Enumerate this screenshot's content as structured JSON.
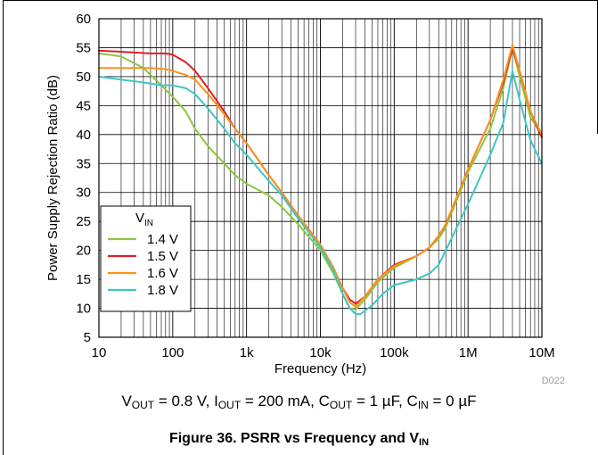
{
  "chart_data": {
    "type": "line",
    "xscale": "log",
    "xlim": [
      10,
      10000000
    ],
    "ylim": [
      5,
      60
    ],
    "xlabel": "Frequency (Hz)",
    "ylabel": "Power Supply Rejection Ratio (dB)",
    "x_ticks": [
      {
        "value": 10,
        "label": "10"
      },
      {
        "value": 100,
        "label": "100"
      },
      {
        "value": 1000,
        "label": "1k"
      },
      {
        "value": 10000,
        "label": "10k"
      },
      {
        "value": 100000,
        "label": "100k"
      },
      {
        "value": 1000000,
        "label": "1M"
      },
      {
        "value": 10000000,
        "label": "10M"
      }
    ],
    "y_ticks": [
      5,
      10,
      15,
      20,
      25,
      30,
      35,
      40,
      45,
      50,
      55,
      60
    ],
    "grid": true,
    "legend": {
      "title": "V",
      "title_sub": "IN",
      "position": "lower-left"
    },
    "series": [
      {
        "name": "1.4 V",
        "color": "#8dc63f",
        "points": [
          [
            10,
            54
          ],
          [
            20,
            53.5
          ],
          [
            40,
            51.5
          ],
          [
            70,
            48.5
          ],
          [
            100,
            46.5
          ],
          [
            150,
            44
          ],
          [
            200,
            41
          ],
          [
            300,
            38
          ],
          [
            500,
            35
          ],
          [
            700,
            33
          ],
          [
            1000,
            31.5
          ],
          [
            2000,
            29.5
          ],
          [
            3000,
            27.5
          ],
          [
            5000,
            24.5
          ],
          [
            10000,
            20
          ],
          [
            15000,
            16
          ],
          [
            20000,
            12.5
          ],
          [
            25000,
            10
          ],
          [
            30000,
            9.8
          ],
          [
            40000,
            11.5
          ],
          [
            60000,
            14.5
          ],
          [
            100000,
            17
          ],
          [
            200000,
            19
          ],
          [
            300000,
            20.5
          ],
          [
            400000,
            22
          ],
          [
            500000,
            24
          ],
          [
            1000000,
            33.5
          ],
          [
            2000000,
            41
          ],
          [
            3000000,
            48
          ],
          [
            4000000,
            55
          ],
          [
            5000000,
            50
          ],
          [
            7000000,
            43
          ],
          [
            10000000,
            40
          ]
        ]
      },
      {
        "name": "1.5 V",
        "color": "#e31e24",
        "points": [
          [
            10,
            54.5
          ],
          [
            20,
            54.3
          ],
          [
            50,
            54
          ],
          [
            80,
            54
          ],
          [
            100,
            53.8
          ],
          [
            150,
            52.5
          ],
          [
            200,
            51
          ],
          [
            300,
            48
          ],
          [
            500,
            44
          ],
          [
            700,
            41
          ],
          [
            1000,
            38.5
          ],
          [
            2000,
            33
          ],
          [
            3000,
            30
          ],
          [
            5000,
            26
          ],
          [
            10000,
            21
          ],
          [
            15000,
            17
          ],
          [
            20000,
            13.5
          ],
          [
            25000,
            11.5
          ],
          [
            30000,
            10.8
          ],
          [
            40000,
            12
          ],
          [
            60000,
            15
          ],
          [
            100000,
            17.5
          ],
          [
            200000,
            19
          ],
          [
            300000,
            20.5
          ],
          [
            400000,
            22.5
          ],
          [
            500000,
            24.5
          ],
          [
            1000000,
            34
          ],
          [
            2000000,
            42.5
          ],
          [
            3000000,
            49
          ],
          [
            4000000,
            55
          ],
          [
            5000000,
            51
          ],
          [
            7000000,
            44
          ],
          [
            10000000,
            39.5
          ]
        ]
      },
      {
        "name": "1.6 V",
        "color": "#f7941d",
        "points": [
          [
            10,
            51.5
          ],
          [
            50,
            51.5
          ],
          [
            80,
            51.3
          ],
          [
            100,
            51
          ],
          [
            150,
            50.3
          ],
          [
            200,
            49.5
          ],
          [
            300,
            47
          ],
          [
            500,
            43.5
          ],
          [
            700,
            41
          ],
          [
            1000,
            38.5
          ],
          [
            2000,
            33
          ],
          [
            3000,
            30
          ],
          [
            5000,
            26
          ],
          [
            10000,
            21
          ],
          [
            15000,
            17
          ],
          [
            20000,
            13.5
          ],
          [
            25000,
            11
          ],
          [
            30000,
            10.3
          ],
          [
            40000,
            12
          ],
          [
            60000,
            15
          ],
          [
            100000,
            17.3
          ],
          [
            200000,
            19
          ],
          [
            300000,
            20.5
          ],
          [
            400000,
            22.5
          ],
          [
            500000,
            24.5
          ],
          [
            1000000,
            34
          ],
          [
            2000000,
            42.5
          ],
          [
            3000000,
            49.5
          ],
          [
            4000000,
            55.5
          ],
          [
            5000000,
            51
          ],
          [
            7000000,
            44
          ],
          [
            10000000,
            40
          ]
        ]
      },
      {
        "name": "1.8 V",
        "color": "#3ec6c6",
        "points": [
          [
            10,
            50
          ],
          [
            20,
            49.5
          ],
          [
            40,
            49
          ],
          [
            70,
            48.5
          ],
          [
            100,
            48.5
          ],
          [
            150,
            48
          ],
          [
            200,
            47
          ],
          [
            300,
            44.5
          ],
          [
            500,
            41
          ],
          [
            700,
            38.5
          ],
          [
            1000,
            36.5
          ],
          [
            2000,
            32
          ],
          [
            3000,
            29.5
          ],
          [
            5000,
            25.5
          ],
          [
            10000,
            20.5
          ],
          [
            15000,
            16.5
          ],
          [
            20000,
            12.5
          ],
          [
            25000,
            10
          ],
          [
            30000,
            9
          ],
          [
            35000,
            9
          ],
          [
            50000,
            10.5
          ],
          [
            70000,
            12.5
          ],
          [
            100000,
            14
          ],
          [
            200000,
            15
          ],
          [
            300000,
            16
          ],
          [
            400000,
            17.5
          ],
          [
            500000,
            20
          ],
          [
            1000000,
            28
          ],
          [
            2000000,
            36.5
          ],
          [
            3000000,
            42
          ],
          [
            4000000,
            51
          ],
          [
            5000000,
            46
          ],
          [
            7000000,
            39
          ],
          [
            10000000,
            35
          ]
        ]
      }
    ]
  },
  "watermark": "D022",
  "conditions": {
    "vout_main": "V",
    "vout_sub": "OUT",
    "vout_val": " = 0.8 V, ",
    "iout_main": "I",
    "iout_sub": "OUT",
    "iout_val": " = 200 mA, ",
    "cout_main": "C",
    "cout_sub": "OUT",
    "cout_val": " = 1 µF, ",
    "cin_main": "C",
    "cin_sub": "IN",
    "cin_val": " = 0 µF"
  },
  "caption": {
    "main": "Figure 36. PSRR vs Frequency and V",
    "sub": "IN"
  }
}
